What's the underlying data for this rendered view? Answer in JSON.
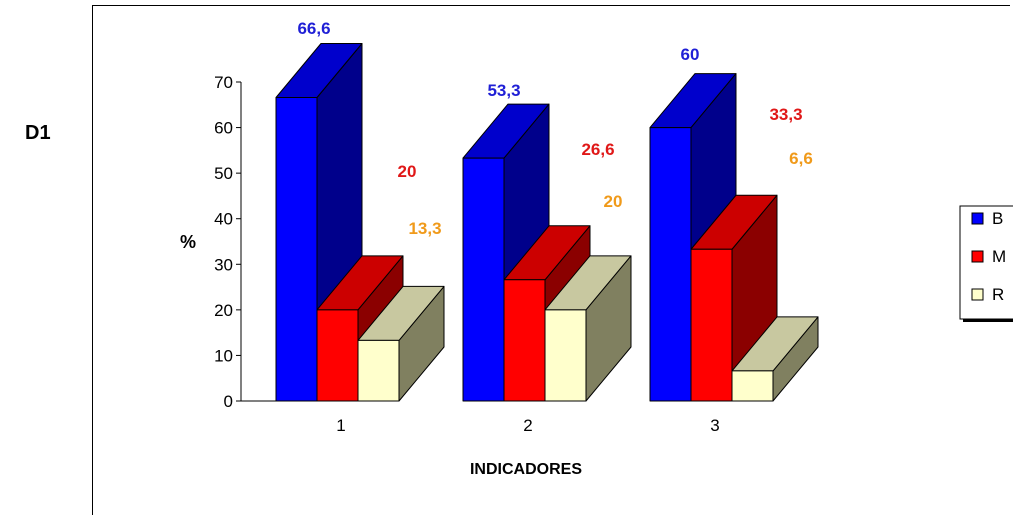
{
  "side_label": "D1",
  "chart_data": {
    "type": "bar",
    "title": "",
    "xlabel": "INDICADORES",
    "ylabel": "%",
    "categories": [
      "1",
      "2",
      "3"
    ],
    "ylim": [
      0,
      70
    ],
    "yticks": [
      0,
      10,
      20,
      30,
      40,
      50,
      60,
      70
    ],
    "three_d": true,
    "series": [
      {
        "name": "B",
        "values": [
          66.6,
          53.3,
          60
        ],
        "labels": [
          "66,6",
          "53,3",
          "60"
        ],
        "color": "#0000ff",
        "top_color": "#0000cc",
        "side_color": "#00008b",
        "label_color": "#1f1fd6"
      },
      {
        "name": "M",
        "values": [
          20,
          26.6,
          33.3
        ],
        "labels": [
          "20",
          "26,6",
          "33,3"
        ],
        "color": "#ff0000",
        "top_color": "#cc0000",
        "side_color": "#8b0000",
        "label_color": "#e01818"
      },
      {
        "name": "R",
        "values": [
          13.3,
          20,
          6.6
        ],
        "labels": [
          "13,3",
          "20",
          "6,6"
        ],
        "color": "#ffffcc",
        "top_color": "#c8c8a0",
        "side_color": "#808060",
        "label_color": "#f09a1a"
      }
    ],
    "legend": {
      "position": "right"
    },
    "grid": false
  }
}
